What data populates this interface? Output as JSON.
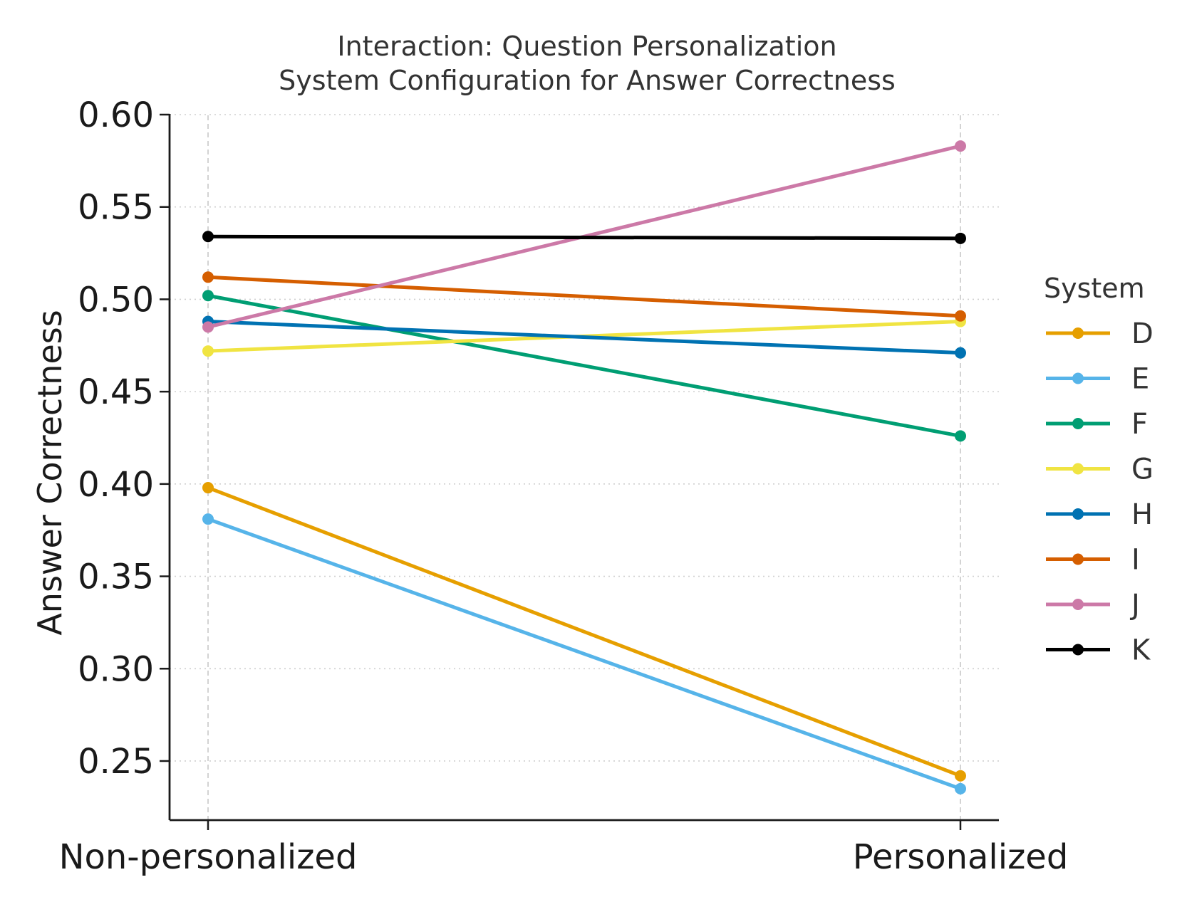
{
  "chart_data": {
    "type": "line",
    "title_lines": [
      "Interaction: Question Personalization",
      "System Configuration for Answer Correctness"
    ],
    "xlabel": "",
    "ylabel": "Answer Correctness",
    "categories": [
      "Non-personalized",
      "Personalized"
    ],
    "ylim": [
      0.218,
      0.6
    ],
    "yticks": [
      0.25,
      0.3,
      0.35,
      0.4,
      0.45,
      0.5,
      0.55,
      0.6
    ],
    "ytick_labels": [
      "0.25",
      "0.30",
      "0.35",
      "0.40",
      "0.45",
      "0.50",
      "0.55",
      "0.60"
    ],
    "grid": true,
    "legend_title": "System",
    "legend_position": "right",
    "series": [
      {
        "name": "D",
        "color": "#E69F00",
        "values": [
          0.398,
          0.242
        ]
      },
      {
        "name": "E",
        "color": "#56B4E9",
        "values": [
          0.381,
          0.235
        ]
      },
      {
        "name": "F",
        "color": "#009E73",
        "values": [
          0.502,
          0.426
        ]
      },
      {
        "name": "G",
        "color": "#F0E442",
        "values": [
          0.472,
          0.488
        ]
      },
      {
        "name": "H",
        "color": "#0072B2",
        "values": [
          0.488,
          0.471
        ]
      },
      {
        "name": "I",
        "color": "#D55E00",
        "values": [
          0.512,
          0.491
        ]
      },
      {
        "name": "J",
        "color": "#CC79A7",
        "values": [
          0.485,
          0.583
        ]
      },
      {
        "name": "K",
        "color": "#000000",
        "values": [
          0.534,
          0.533
        ]
      }
    ]
  }
}
